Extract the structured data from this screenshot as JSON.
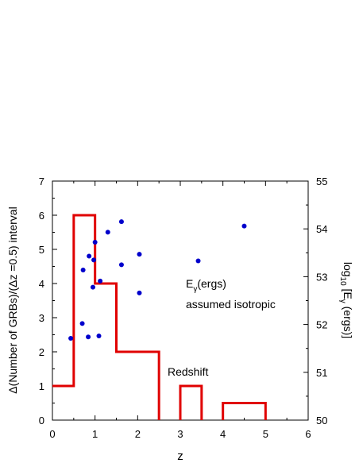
{
  "chart_data": {
    "type": "bar",
    "xlabel": "z",
    "ylabel": "Δ(Number of GRBs)/(Δz =0.5) interval",
    "ylabel_right": {
      "base": "log",
      "sub1": "10",
      "mid": " [E",
      "sub2": "γ",
      "end": " (ergs)]"
    },
    "xlim": [
      0,
      6
    ],
    "ylim": [
      0,
      7
    ],
    "ylim_right": [
      50,
      55
    ],
    "x_ticks": [
      "0",
      "1",
      "2",
      "3",
      "4",
      "5",
      "6"
    ],
    "y_ticks": [
      "0",
      "1",
      "2",
      "3",
      "4",
      "5",
      "6",
      "7"
    ],
    "y_ticks_right": [
      "50",
      "51",
      "52",
      "53",
      "54",
      "55"
    ],
    "series": [
      {
        "kind": "histogram",
        "color": "#e00000",
        "bins": [
          {
            "x0": 0.0,
            "x1": 0.5,
            "count": 1
          },
          {
            "x0": 0.5,
            "x1": 1.0,
            "count": 6
          },
          {
            "x0": 1.0,
            "x1": 1.5,
            "count": 4
          },
          {
            "x0": 1.5,
            "x1": 2.0,
            "count": 2
          },
          {
            "x0": 2.0,
            "x1": 2.5,
            "count": 2
          },
          {
            "x0": 3.0,
            "x1": 3.5,
            "count": 1
          },
          {
            "x0": 4.0,
            "x1": 5.0,
            "count": 0.5
          }
        ]
      },
      {
        "kind": "scatter",
        "axis": "right",
        "color": "#0000cc",
        "points": [
          [
            0.43,
            51.71
          ],
          [
            0.7,
            52.02
          ],
          [
            0.72,
            53.14
          ],
          [
            0.84,
            51.74
          ],
          [
            0.86,
            53.43
          ],
          [
            0.95,
            52.78
          ],
          [
            0.97,
            53.35
          ],
          [
            1.0,
            53.72
          ],
          [
            1.09,
            51.76
          ],
          [
            1.12,
            52.91
          ],
          [
            1.3,
            53.93
          ],
          [
            1.62,
            54.15
          ],
          [
            1.62,
            53.25
          ],
          [
            2.04,
            53.47
          ],
          [
            2.04,
            52.66
          ],
          [
            3.42,
            53.33
          ],
          [
            4.5,
            54.06
          ]
        ]
      }
    ],
    "annotations": {
      "energy_main": "E",
      "energy_sub": "γ",
      "energy_rest": "(ergs)",
      "isotropic": "assumed isotropic",
      "redshift": "Redshift"
    },
    "grid": false,
    "legend": "none"
  }
}
